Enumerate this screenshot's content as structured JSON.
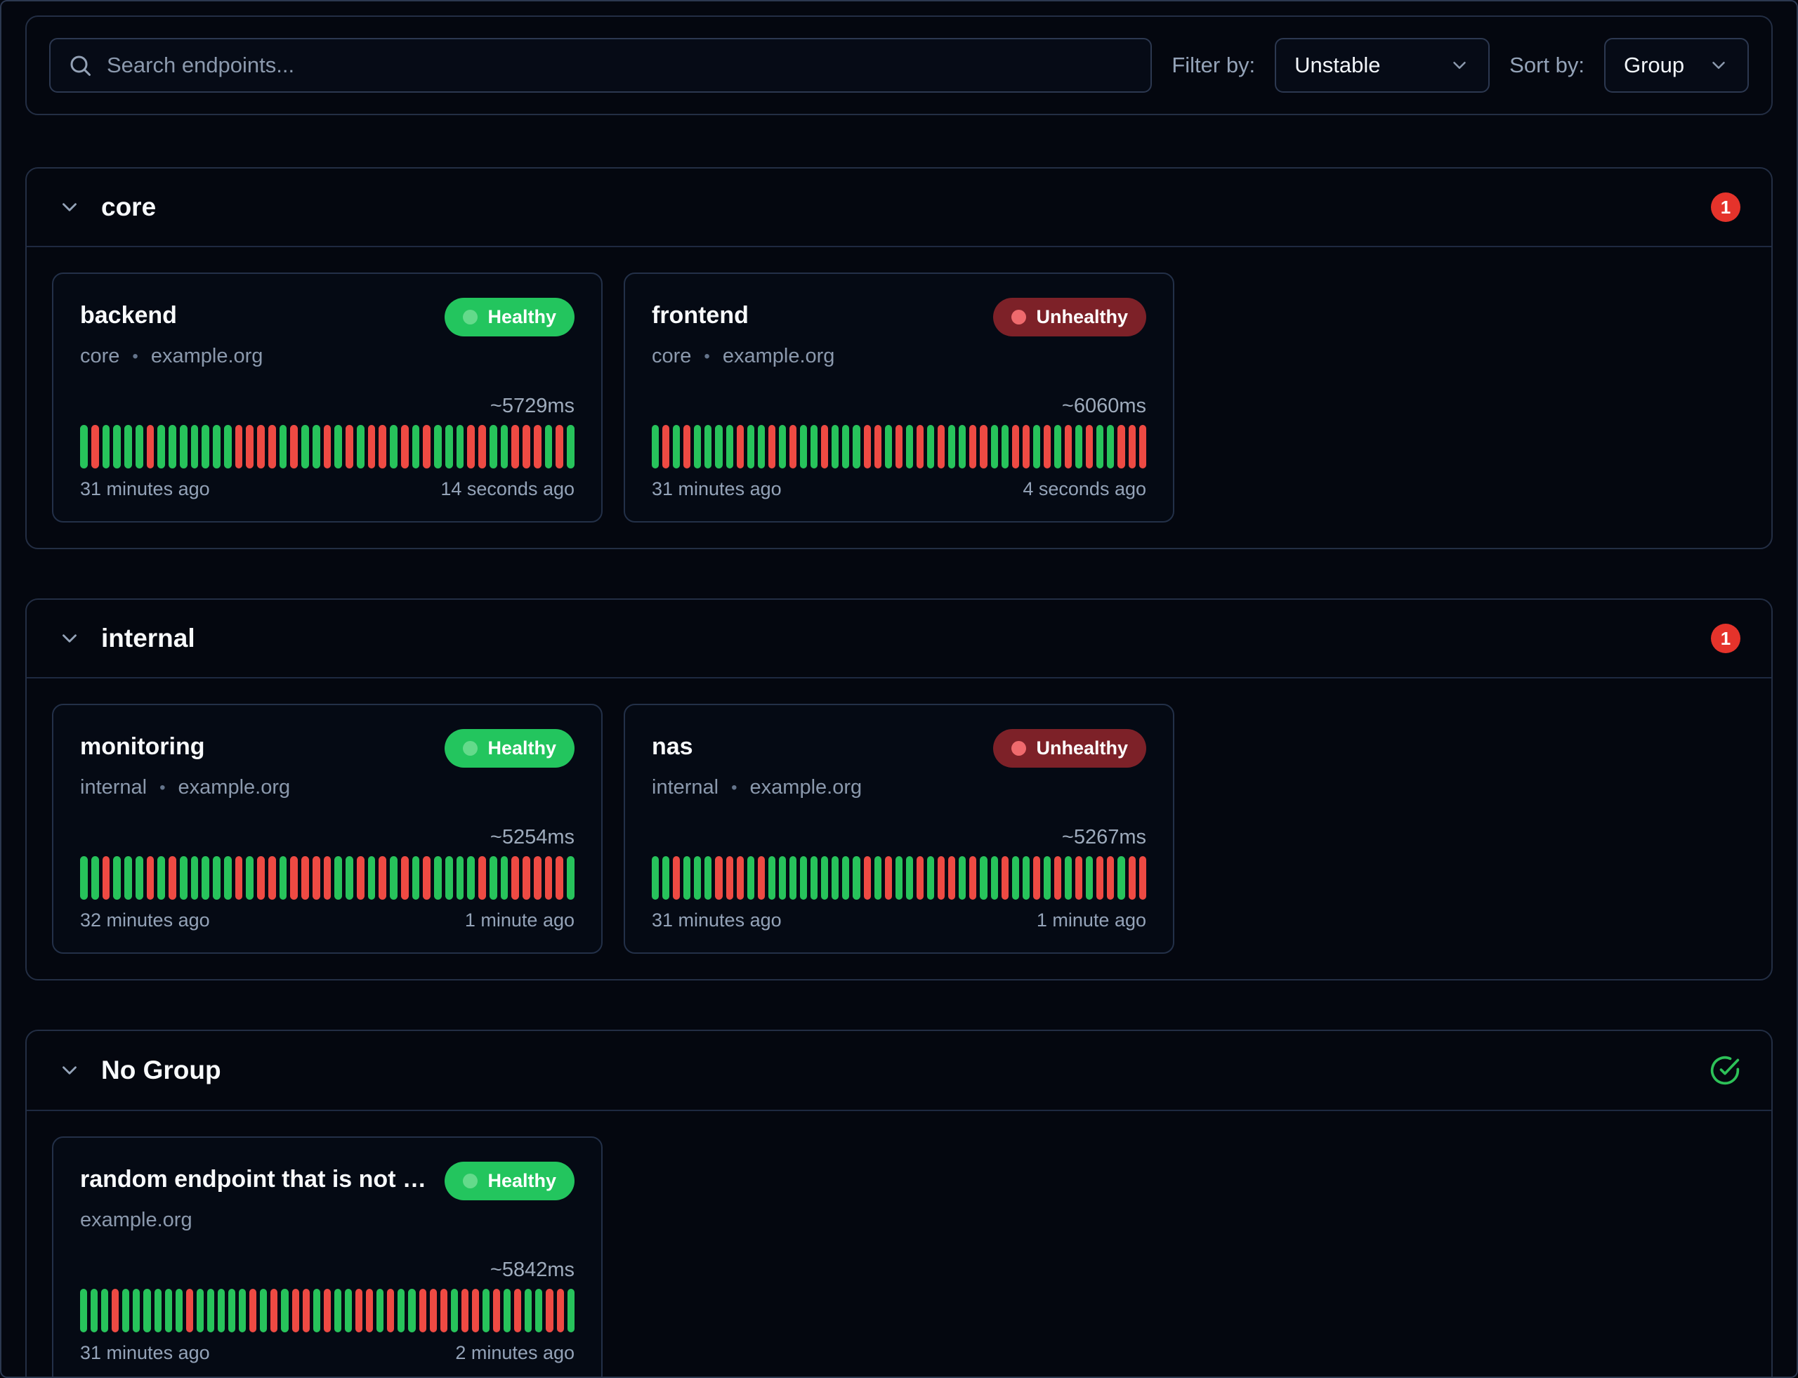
{
  "toolbar": {
    "search_placeholder": "Search endpoints...",
    "filter_label": "Filter by:",
    "filter_value": "Unstable",
    "sort_label": "Sort by:",
    "sort_value": "Group"
  },
  "colors": {
    "bar_green": "#27c35b",
    "bar_red": "#ee4a43",
    "badge_red": "#e5332b",
    "healthy_bg": "#23c55e",
    "healthy_dot": "#64da8b",
    "unhealthy_bg": "#7d2128",
    "unhealthy_dot": "#ef6a6d",
    "ok_green": "#2dc158"
  },
  "groups": [
    {
      "title": "core",
      "unhealthy_count": "1",
      "endpoints": [
        {
          "name": "backend",
          "status": "Healthy",
          "group_label": "core",
          "host": "example.org",
          "response_time": "~5729ms",
          "bars": "grggggrgggggggrrrrgrggrgrgrrgrgrgggrrggrrrgrg",
          "oldest": "31 minutes ago",
          "latest": "14 seconds ago"
        },
        {
          "name": "frontend",
          "status": "Unhealthy",
          "group_label": "core",
          "host": "example.org",
          "response_time": "~6060ms",
          "bars": "grgrggggrggrgrggrgggrrgrgrgrggrrggrrgrgrgrggrrr",
          "oldest": "31 minutes ago",
          "latest": "4 seconds ago"
        }
      ]
    },
    {
      "title": "internal",
      "unhealthy_count": "1",
      "endpoints": [
        {
          "name": "monitoring",
          "status": "Healthy",
          "group_label": "internal",
          "host": "example.org",
          "response_time": "~5254ms",
          "bars": "ggrgggrgrgggggrgrrgrrrrggrgrgrgrggggrggrrrrrg",
          "oldest": "32 minutes ago",
          "latest": "1 minute ago"
        },
        {
          "name": "nas",
          "status": "Unhealthy",
          "group_label": "internal",
          "host": "example.org",
          "response_time": "~5267ms",
          "bars": "ggrgggrrrgrgggggggggrgrggrgrrgrggrggrgrgrgrrgrr",
          "oldest": "31 minutes ago",
          "latest": "1 minute ago"
        }
      ]
    },
    {
      "title": "No Group",
      "unhealthy_count": "",
      "endpoints": [
        {
          "name": "random endpoint that is not part...",
          "status": "Healthy",
          "group_label": "",
          "host": "example.org",
          "response_time": "~5842ms",
          "bars": "gggrggggggrgggggrgrgrrgrggrrgrggrrrgrrgrgrggrrg",
          "oldest": "31 minutes ago",
          "latest": "2 minutes ago"
        }
      ]
    }
  ]
}
